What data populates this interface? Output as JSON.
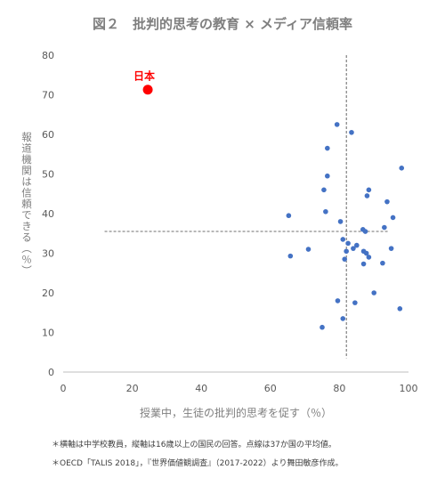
{
  "chart_data": {
    "type": "scatter",
    "title": "図２　批判的思考の教育 × メディア信頼率",
    "xlabel": "授業中，生徒の批判的思考を促す（％）",
    "ylabel": "報道機関は信頼できる（％）",
    "xlim": [
      0,
      100
    ],
    "ylim": [
      0,
      80
    ],
    "xticks": [
      "0",
      "20",
      "40",
      "60",
      "80",
      "100"
    ],
    "yticks": [
      "0",
      "10",
      "20",
      "30",
      "40",
      "50",
      "60",
      "70",
      "80"
    ],
    "grid": false,
    "reference_lines": {
      "x": 82,
      "y": 35.5
    },
    "highlight": {
      "label": "日本",
      "x": 24.5,
      "y": 71.3,
      "color": "#ff0000"
    },
    "series_color": "#4472c4",
    "points": [
      {
        "x": 79.3,
        "y": 62.5
      },
      {
        "x": 83.5,
        "y": 60.5
      },
      {
        "x": 76.5,
        "y": 56.5
      },
      {
        "x": 98.0,
        "y": 51.5
      },
      {
        "x": 76.5,
        "y": 49.5
      },
      {
        "x": 88.5,
        "y": 46.0
      },
      {
        "x": 75.5,
        "y": 46.0
      },
      {
        "x": 88.0,
        "y": 44.5
      },
      {
        "x": 93.8,
        "y": 43.0
      },
      {
        "x": 76.0,
        "y": 40.5
      },
      {
        "x": 65.3,
        "y": 39.5
      },
      {
        "x": 95.5,
        "y": 39.0
      },
      {
        "x": 80.3,
        "y": 38.0
      },
      {
        "x": 93.0,
        "y": 36.5
      },
      {
        "x": 86.8,
        "y": 36.0
      },
      {
        "x": 87.5,
        "y": 35.5
      },
      {
        "x": 81.0,
        "y": 33.5
      },
      {
        "x": 82.5,
        "y": 32.5
      },
      {
        "x": 85.0,
        "y": 32.0
      },
      {
        "x": 71.0,
        "y": 31.0
      },
      {
        "x": 84.0,
        "y": 31.2
      },
      {
        "x": 95.0,
        "y": 31.2
      },
      {
        "x": 82.0,
        "y": 30.5
      },
      {
        "x": 87.0,
        "y": 30.5
      },
      {
        "x": 87.8,
        "y": 30.0
      },
      {
        "x": 65.8,
        "y": 29.3
      },
      {
        "x": 88.5,
        "y": 29.0
      },
      {
        "x": 81.5,
        "y": 28.5
      },
      {
        "x": 92.5,
        "y": 27.5
      },
      {
        "x": 87.0,
        "y": 27.3
      },
      {
        "x": 90.0,
        "y": 20.0
      },
      {
        "x": 79.5,
        "y": 18.0
      },
      {
        "x": 84.5,
        "y": 17.5
      },
      {
        "x": 97.5,
        "y": 16.0
      },
      {
        "x": 81.0,
        "y": 13.5
      },
      {
        "x": 75.0,
        "y": 11.3
      }
    ]
  },
  "notes": [
    "＊横軸は中学校教員，縦軸は16歳以上の国民の回答。点線は37か国の平均値。",
    "＊OECD「TALIS 2018」，『世界価値観調査』（2017-2022）より舞田敏彦作成。"
  ]
}
